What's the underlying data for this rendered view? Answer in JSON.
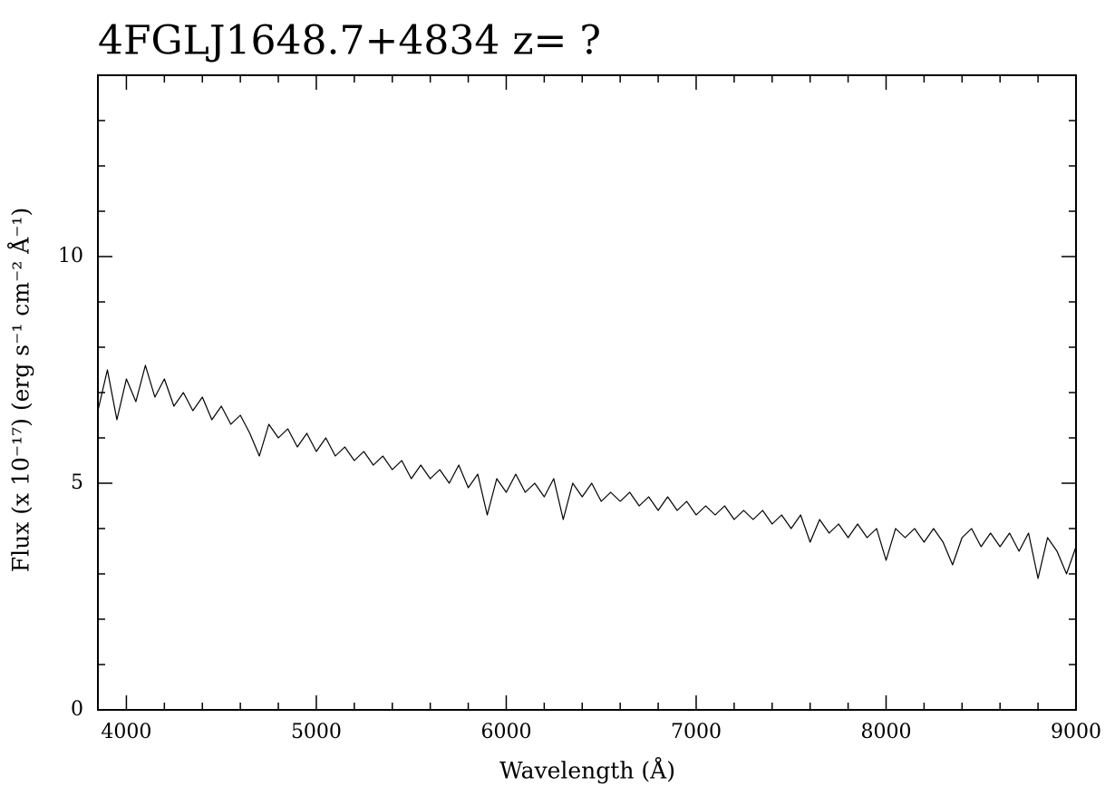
{
  "chart_data": {
    "type": "line",
    "title": "4FGLJ1648.7+4834 z= ?",
    "xlabel": "Wavelength (Å)",
    "ylabel": "Flux (x 10⁻¹⁷) (erg s⁻¹ cm⁻² Å⁻¹)",
    "color": "#000000",
    "xlim": [
      3850,
      9000
    ],
    "ylim": [
      0,
      14
    ],
    "xticks": [
      4000,
      5000,
      6000,
      7000,
      8000,
      9000
    ],
    "yticks": [
      0,
      5,
      10
    ],
    "xminorticks": [
      4200,
      4400,
      4600,
      4800,
      5200,
      5400,
      5600,
      5800,
      6200,
      6400,
      6600,
      6800,
      7200,
      7400,
      7600,
      7800,
      8200,
      8400,
      8600,
      8800
    ],
    "yminorticks": [
      1,
      2,
      3,
      4,
      6,
      7,
      8,
      9,
      11,
      12,
      13
    ],
    "x": [
      3850,
      3900,
      3950,
      4000,
      4050,
      4100,
      4150,
      4200,
      4250,
      4300,
      4350,
      4400,
      4450,
      4500,
      4550,
      4600,
      4650,
      4700,
      4750,
      4800,
      4850,
      4900,
      4950,
      5000,
      5050,
      5100,
      5150,
      5200,
      5250,
      5300,
      5350,
      5400,
      5450,
      5500,
      5550,
      5600,
      5650,
      5700,
      5750,
      5800,
      5850,
      5900,
      5950,
      6000,
      6050,
      6100,
      6150,
      6200,
      6250,
      6300,
      6350,
      6400,
      6450,
      6500,
      6550,
      6600,
      6650,
      6700,
      6750,
      6800,
      6850,
      6900,
      6950,
      7000,
      7050,
      7100,
      7150,
      7200,
      7250,
      7300,
      7350,
      7400,
      7450,
      7500,
      7550,
      7600,
      7650,
      7700,
      7750,
      7800,
      7850,
      7900,
      7950,
      8000,
      8050,
      8100,
      8150,
      8200,
      8250,
      8300,
      8350,
      8400,
      8450,
      8500,
      8550,
      8600,
      8650,
      8700,
      8750,
      8800,
      8850,
      8900,
      8950,
      9000
    ],
    "values": [
      6.6,
      7.5,
      6.4,
      7.3,
      6.8,
      7.6,
      6.9,
      7.3,
      6.7,
      7.0,
      6.6,
      6.9,
      6.4,
      6.7,
      6.3,
      6.5,
      6.1,
      5.6,
      6.3,
      6.0,
      6.2,
      5.8,
      6.1,
      5.7,
      6.0,
      5.6,
      5.8,
      5.5,
      5.7,
      5.4,
      5.6,
      5.3,
      5.5,
      5.1,
      5.4,
      5.1,
      5.3,
      5.0,
      5.4,
      4.9,
      5.2,
      4.3,
      5.1,
      4.8,
      5.2,
      4.8,
      5.0,
      4.7,
      5.1,
      4.2,
      5.0,
      4.7,
      5.0,
      4.6,
      4.8,
      4.6,
      4.8,
      4.5,
      4.7,
      4.4,
      4.7,
      4.4,
      4.6,
      4.3,
      4.5,
      4.3,
      4.5,
      4.2,
      4.4,
      4.2,
      4.4,
      4.1,
      4.3,
      4.0,
      4.3,
      3.7,
      4.2,
      3.9,
      4.1,
      3.8,
      4.1,
      3.8,
      4.0,
      3.3,
      4.0,
      3.8,
      4.0,
      3.7,
      4.0,
      3.7,
      3.2,
      3.8,
      4.0,
      3.6,
      3.9,
      3.6,
      3.9,
      3.5,
      3.9,
      2.9,
      3.8,
      3.5,
      3.0,
      3.6
    ]
  }
}
